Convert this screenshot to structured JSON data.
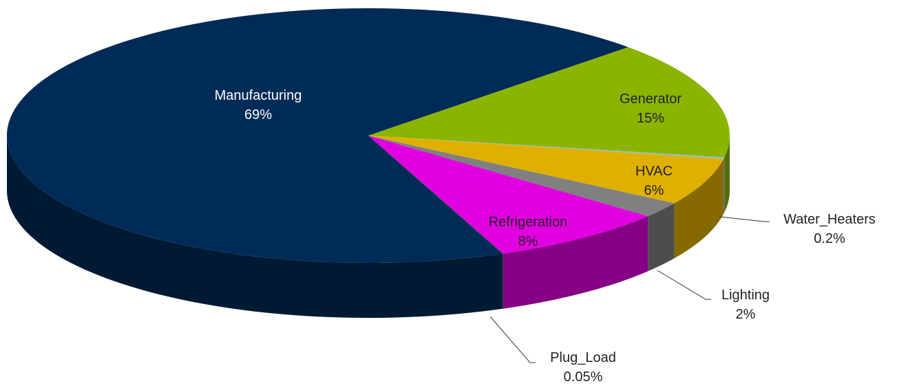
{
  "chart_data": {
    "type": "pie",
    "categories": [
      "Generator",
      "Water_Heaters",
      "HVAC",
      "Lighting",
      "Refrigeration",
      "Plug_Load",
      "Manufacturing"
    ],
    "values": [
      15,
      0.2,
      6,
      2,
      8,
      0.05,
      69
    ],
    "value_labels": [
      "15%",
      "0.2%",
      "6%",
      "2%",
      "8%",
      "0.05%",
      "69%"
    ],
    "colors": [
      "#8ab400",
      "#8fbcd8",
      "#e0b000",
      "#808080",
      "#e000e0",
      "#5a2a70",
      "#002b57"
    ]
  }
}
